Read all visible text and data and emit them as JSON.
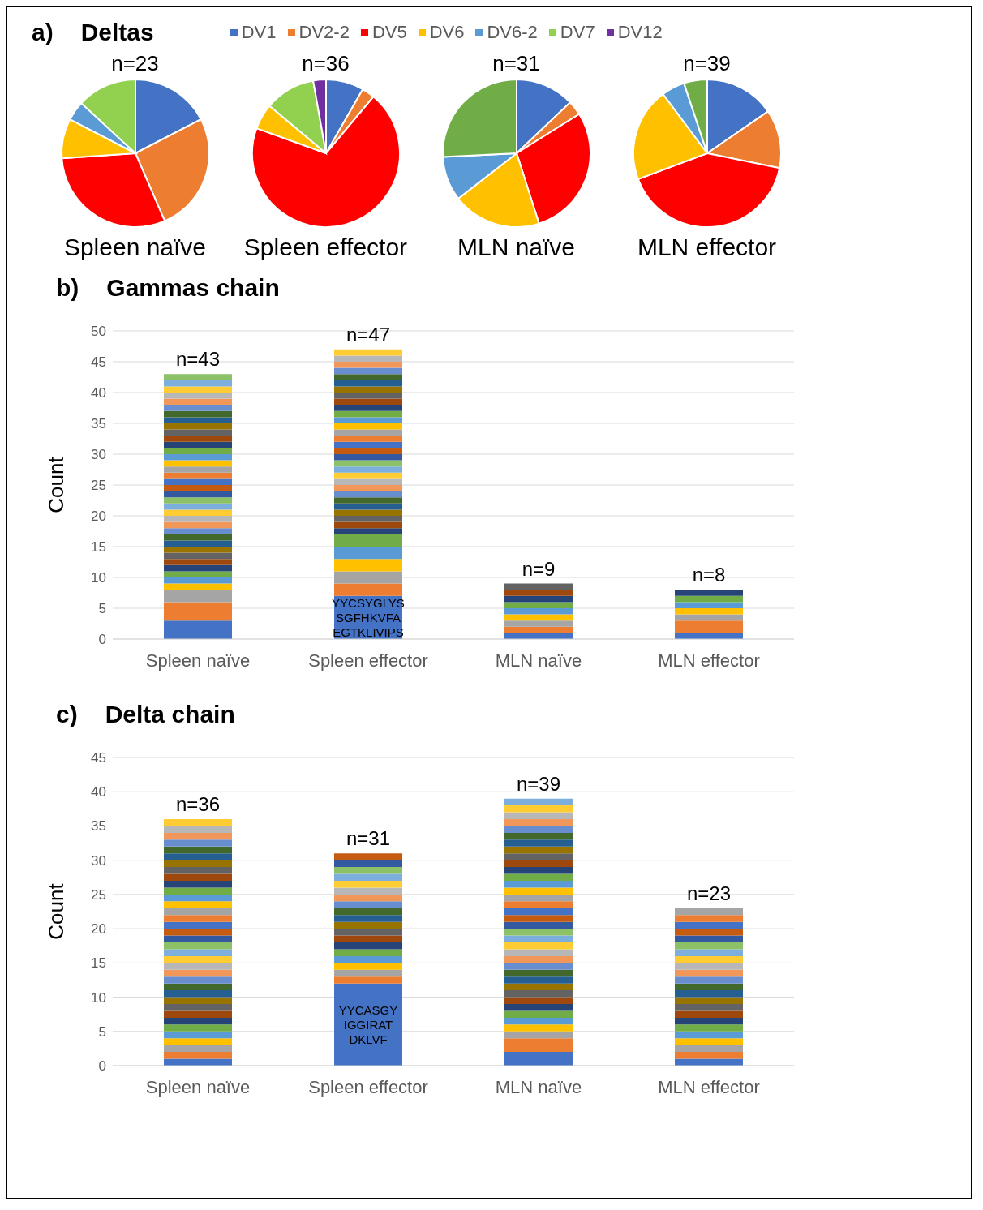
{
  "chart_data": [
    {
      "type": "pie",
      "title": "n=23",
      "xlabel": "Spleen naïve",
      "annotations": [
        "a)",
        "Deltas"
      ],
      "legend": "top",
      "categories": [
        "DV1",
        "DV2-2",
        "DV5",
        "DV6",
        "DV6-2",
        "DV7",
        "DV12"
      ],
      "values": [
        17.4,
        26.1,
        30.4,
        8.7,
        4.3,
        13.1,
        0
      ],
      "colors": [
        "#4472c4",
        "#ed7d31",
        "#ff0000",
        "#ffc000",
        "#5b9bd5",
        "#92d050",
        "#7030a0"
      ]
    },
    {
      "type": "pie",
      "title": "n=36",
      "xlabel": "Spleen effector",
      "categories": [
        null,
        null,
        null,
        null,
        null,
        null,
        null
      ],
      "values": [
        8.3,
        2.8,
        69.4,
        5.6,
        0,
        11.1,
        2.8
      ],
      "colors": [
        "#4472c4",
        "#ed7d31",
        "#ff0000",
        "#ffc000",
        "#5b9bd5",
        "#92d050",
        "#7030a0"
      ]
    },
    {
      "type": "pie",
      "title": "n=31",
      "xlabel": "MLN naïve",
      "categories": [
        null,
        null,
        null,
        null,
        null,
        null,
        null
      ],
      "values": [
        12.9,
        3.2,
        29.0,
        19.4,
        9.7,
        25.8,
        0
      ],
      "colors": [
        "#4472c4",
        "#ed7d31",
        "#ff0000",
        "#ffc000",
        "#5b9bd5",
        "#70ad47",
        "#7030a0"
      ]
    },
    {
      "type": "pie",
      "title": "n=39",
      "xlabel": "MLN effector",
      "categories": [
        null,
        null,
        null,
        null,
        null,
        null,
        null
      ],
      "values": [
        15.4,
        12.8,
        41.1,
        20.5,
        5.1,
        5.1,
        0
      ],
      "colors": [
        "#4472c4",
        "#ed7d31",
        "#ff0000",
        "#ffc000",
        "#5b9bd5",
        "#70ad47",
        "#7030a0"
      ]
    },
    {
      "type": "bar",
      "stacked": true,
      "title": "Gammas chain",
      "ylabel": "Count",
      "grid": "y",
      "ylim": [
        0,
        50
      ],
      "yticks": [
        0,
        5,
        10,
        15,
        20,
        25,
        30,
        35,
        40,
        45,
        50
      ],
      "categories": [
        "Spleen naïve",
        "Spleen effector",
        "MLN naïve",
        "MLN effector"
      ],
      "totals": [
        "n=43",
        "n=47",
        "n=9",
        "n=8"
      ],
      "annotations": [
        "b)",
        "YYCSYGLYS",
        "SGFHKVFA",
        "EGTKLIVIPS"
      ],
      "series": [
        {
          "color": "#4472c4",
          "values": [
            3,
            7,
            1,
            1
          ]
        },
        {
          "color": "#ed7d31",
          "values": [
            3,
            2,
            1,
            2
          ]
        },
        {
          "color": "#a5a5a5",
          "values": [
            2,
            2,
            1,
            1
          ]
        },
        {
          "color": "#ffc000",
          "values": [
            1,
            2,
            1,
            1
          ]
        },
        {
          "color": "#5b9bd5",
          "values": [
            1,
            2,
            1,
            1
          ]
        },
        {
          "color": "#70ad47",
          "values": [
            1,
            2,
            1,
            1
          ]
        },
        {
          "color": "#264478",
          "values": [
            1,
            1,
            1,
            1
          ]
        },
        {
          "color": "#9e480e",
          "values": [
            1,
            1,
            1,
            null
          ]
        },
        {
          "color": "#636363",
          "values": [
            1,
            1,
            1,
            null
          ]
        },
        {
          "color": "#997300",
          "values": [
            1,
            1,
            null,
            null
          ]
        },
        {
          "color": "#255e91",
          "values": [
            1,
            1,
            null,
            null
          ]
        },
        {
          "color": "#43682b",
          "values": [
            1,
            1,
            null,
            null
          ]
        },
        {
          "color": "#698ed0",
          "values": [
            1,
            1,
            null,
            null
          ]
        },
        {
          "color": "#f1975a",
          "values": [
            1,
            1,
            null,
            null
          ]
        },
        {
          "color": "#b7b7b7",
          "values": [
            1,
            1,
            null,
            null
          ]
        },
        {
          "color": "#ffcd33",
          "values": [
            1,
            1,
            null,
            null
          ]
        },
        {
          "color": "#7cafdd",
          "values": [
            1,
            1,
            null,
            null
          ]
        },
        {
          "color": "#8cc168",
          "values": [
            1,
            1,
            null,
            null
          ]
        },
        {
          "color": "#335aa1",
          "values": [
            1,
            1,
            null,
            null
          ]
        },
        {
          "color": "#c55a11",
          "values": [
            1,
            1,
            null,
            null
          ]
        },
        {
          "color": "#4472c4",
          "values": [
            1,
            1,
            null,
            null
          ]
        },
        {
          "color": "#ed7d31",
          "values": [
            1,
            1,
            null,
            null
          ]
        },
        {
          "color": "#a5a5a5",
          "values": [
            1,
            1,
            null,
            null
          ]
        },
        {
          "color": "#ffc000",
          "values": [
            1,
            1,
            null,
            null
          ]
        },
        {
          "color": "#5b9bd5",
          "values": [
            1,
            1,
            null,
            null
          ]
        },
        {
          "color": "#70ad47",
          "values": [
            1,
            1,
            null,
            null
          ]
        },
        {
          "color": "#264478",
          "values": [
            1,
            1,
            null,
            null
          ]
        },
        {
          "color": "#9e480e",
          "values": [
            1,
            1,
            null,
            null
          ]
        },
        {
          "color": "#636363",
          "values": [
            1,
            1,
            null,
            null
          ]
        },
        {
          "color": "#997300",
          "values": [
            1,
            1,
            null,
            null
          ]
        },
        {
          "color": "#255e91",
          "values": [
            1,
            1,
            null,
            null
          ]
        },
        {
          "color": "#43682b",
          "values": [
            1,
            1,
            null,
            null
          ]
        },
        {
          "color": "#698ed0",
          "values": [
            1,
            1,
            null,
            null
          ]
        },
        {
          "color": "#f1975a",
          "values": [
            1,
            1,
            null,
            null
          ]
        },
        {
          "color": "#b7b7b7",
          "values": [
            1,
            1,
            null,
            null
          ]
        },
        {
          "color": "#ffcd33",
          "values": [
            1,
            1,
            null,
            null
          ]
        },
        {
          "color": "#7cafdd",
          "values": [
            1,
            null,
            null,
            null
          ]
        },
        {
          "color": "#8cc168",
          "values": [
            1,
            null,
            null,
            null
          ]
        }
      ]
    },
    {
      "type": "bar",
      "stacked": true,
      "title": "Delta chain",
      "ylabel": "Count",
      "grid": "y",
      "ylim": [
        0,
        45
      ],
      "yticks": [
        0,
        5,
        10,
        15,
        20,
        25,
        30,
        35,
        40,
        45
      ],
      "categories": [
        "Spleen naïve",
        "Spleen effector",
        "MLN naïve",
        "MLN effector"
      ],
      "totals": [
        "n=36",
        "n=31",
        "n=39",
        "n=23"
      ],
      "annotations": [
        "c)",
        "YYCASGY",
        "IGGIRAT",
        "DKLVF"
      ],
      "series": [
        {
          "color": "#4472c4",
          "values": [
            1,
            12,
            2,
            1
          ]
        },
        {
          "color": "#ed7d31",
          "values": [
            1,
            1,
            2,
            1
          ]
        },
        {
          "color": "#a5a5a5",
          "values": [
            1,
            1,
            1,
            1
          ]
        },
        {
          "color": "#ffc000",
          "values": [
            1,
            1,
            1,
            1
          ]
        },
        {
          "color": "#5b9bd5",
          "values": [
            1,
            1,
            1,
            1
          ]
        },
        {
          "color": "#70ad47",
          "values": [
            1,
            1,
            1,
            1
          ]
        },
        {
          "color": "#264478",
          "values": [
            1,
            1,
            1,
            1
          ]
        },
        {
          "color": "#9e480e",
          "values": [
            1,
            1,
            1,
            1
          ]
        },
        {
          "color": "#636363",
          "values": [
            1,
            1,
            1,
            1
          ]
        },
        {
          "color": "#997300",
          "values": [
            1,
            1,
            1,
            1
          ]
        },
        {
          "color": "#255e91",
          "values": [
            1,
            1,
            1,
            1
          ]
        },
        {
          "color": "#43682b",
          "values": [
            1,
            1,
            1,
            1
          ]
        },
        {
          "color": "#698ed0",
          "values": [
            1,
            1,
            1,
            1
          ]
        },
        {
          "color": "#f1975a",
          "values": [
            1,
            1,
            1,
            1
          ]
        },
        {
          "color": "#b7b7b7",
          "values": [
            1,
            1,
            1,
            1
          ]
        },
        {
          "color": "#ffcd33",
          "values": [
            1,
            1,
            1,
            1
          ]
        },
        {
          "color": "#7cafdd",
          "values": [
            1,
            1,
            1,
            1
          ]
        },
        {
          "color": "#8cc168",
          "values": [
            1,
            1,
            1,
            1
          ]
        },
        {
          "color": "#335aa1",
          "values": [
            1,
            1,
            1,
            1
          ]
        },
        {
          "color": "#c55a11",
          "values": [
            1,
            1,
            1,
            1
          ]
        },
        {
          "color": "#4472c4",
          "values": [
            1,
            null,
            1,
            1
          ]
        },
        {
          "color": "#ed7d31",
          "values": [
            1,
            null,
            1,
            1
          ]
        },
        {
          "color": "#a5a5a5",
          "values": [
            1,
            null,
            1,
            1
          ]
        },
        {
          "color": "#ffc000",
          "values": [
            1,
            null,
            1,
            null
          ]
        },
        {
          "color": "#5b9bd5",
          "values": [
            1,
            null,
            1,
            null
          ]
        },
        {
          "color": "#70ad47",
          "values": [
            1,
            null,
            1,
            null
          ]
        },
        {
          "color": "#264478",
          "values": [
            1,
            null,
            1,
            null
          ]
        },
        {
          "color": "#9e480e",
          "values": [
            1,
            null,
            1,
            null
          ]
        },
        {
          "color": "#636363",
          "values": [
            1,
            null,
            1,
            null
          ]
        },
        {
          "color": "#997300",
          "values": [
            1,
            null,
            1,
            null
          ]
        },
        {
          "color": "#255e91",
          "values": [
            1,
            null,
            1,
            null
          ]
        },
        {
          "color": "#43682b",
          "values": [
            1,
            null,
            1,
            null
          ]
        },
        {
          "color": "#698ed0",
          "values": [
            1,
            null,
            1,
            null
          ]
        },
        {
          "color": "#f1975a",
          "values": [
            1,
            null,
            1,
            null
          ]
        },
        {
          "color": "#b7b7b7",
          "values": [
            1,
            null,
            1,
            null
          ]
        },
        {
          "color": "#ffcd33",
          "values": [
            1,
            null,
            1,
            null
          ]
        },
        {
          "color": "#7cafdd",
          "values": [
            null,
            null,
            1,
            null
          ]
        }
      ]
    }
  ]
}
